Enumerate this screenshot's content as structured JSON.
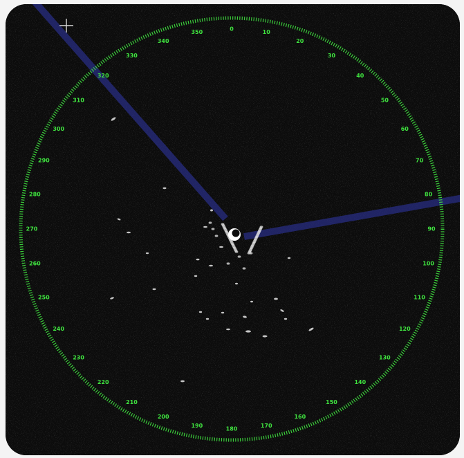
{
  "radar": {
    "bearing_labels": [
      "0",
      "10",
      "20",
      "30",
      "40",
      "50",
      "60",
      "70",
      "80",
      "90",
      "100",
      "110",
      "120",
      "130",
      "140",
      "150",
      "160",
      "170",
      "180",
      "190",
      "200",
      "210",
      "220",
      "230",
      "240",
      "250",
      "260",
      "270",
      "280",
      "290",
      "300",
      "310",
      "320",
      "330",
      "340",
      "350"
    ],
    "ring_color": "#3fe23f",
    "sweep_color": "#2a2f8a",
    "echo_color": "#e6e6e6",
    "icons": {
      "cursor": "crosshair-icon",
      "own_ship": "own-ship-icon"
    }
  }
}
